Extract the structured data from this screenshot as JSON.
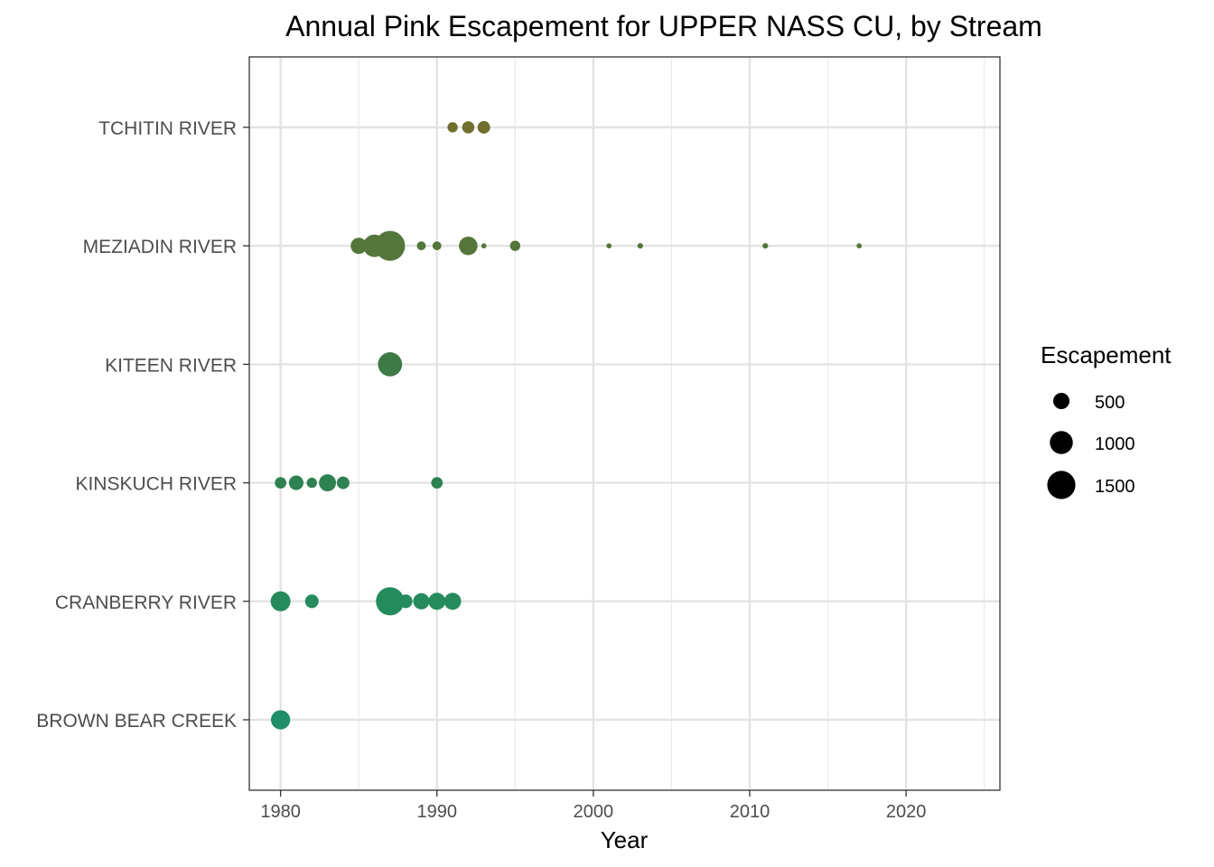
{
  "chart_data": {
    "type": "scatter",
    "title": "Annual Pink Escapement for UPPER NASS CU, by Stream",
    "xlabel": "Year",
    "ylabel": "",
    "xlim": [
      1978,
      2026
    ],
    "x_ticks": [
      "1980",
      "1990",
      "2000",
      "2010",
      "2020"
    ],
    "x_tick_values": [
      1980,
      1990,
      2000,
      2010,
      2020
    ],
    "x_minor_ticks": [
      1985,
      1995,
      2005,
      2015,
      2025
    ],
    "categories": [
      "BROWN BEAR CREEK",
      "CRANBERRY RIVER",
      "KINSKUCH RIVER",
      "KITEEN RIVER",
      "MEZIADIN RIVER",
      "TCHITIN RIVER"
    ],
    "grid": true,
    "size_legend": {
      "title": "Escapement",
      "position": "right",
      "values": [
        500,
        1000,
        1500
      ],
      "labels": [
        "500",
        "1000",
        "1500"
      ]
    },
    "series": [
      {
        "category": "BROWN BEAR CREEK",
        "color": "#1f8f67",
        "points": [
          [
            1980,
            700
          ]
        ]
      },
      {
        "category": "CRANBERRY RIVER",
        "color": "#258b5c",
        "points": [
          [
            1980,
            750
          ],
          [
            1982,
            350
          ],
          [
            1987,
            1500
          ],
          [
            1988,
            350
          ],
          [
            1989,
            500
          ],
          [
            1990,
            550
          ],
          [
            1991,
            550
          ]
        ]
      },
      {
        "category": "KINSKUCH RIVER",
        "color": "#2e8151",
        "points": [
          [
            1980,
            250
          ],
          [
            1981,
            400
          ],
          [
            1982,
            200
          ],
          [
            1983,
            550
          ],
          [
            1984,
            300
          ],
          [
            1990,
            250
          ]
        ]
      },
      {
        "category": "KITEEN RIVER",
        "color": "#3d7a45",
        "points": [
          [
            1987,
            1100
          ]
        ]
      },
      {
        "category": "MEZIADIN RIVER",
        "color": "#54763b",
        "points": [
          [
            1985,
            500
          ],
          [
            1986,
            950
          ],
          [
            1987,
            1700
          ],
          [
            1989,
            150
          ],
          [
            1990,
            150
          ],
          [
            1992,
            650
          ],
          [
            1993,
            50
          ],
          [
            1995,
            200
          ],
          [
            2001,
            50
          ],
          [
            2003,
            60
          ],
          [
            2011,
            60
          ],
          [
            2017,
            50
          ]
        ]
      },
      {
        "category": "TCHITIN RIVER",
        "color": "#6f6f2e",
        "points": [
          [
            1991,
            200
          ],
          [
            1992,
            280
          ],
          [
            1993,
            300
          ]
        ]
      }
    ]
  }
}
